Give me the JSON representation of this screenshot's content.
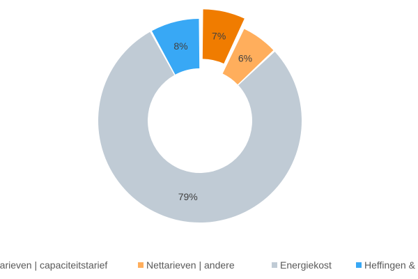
{
  "chart_data": {
    "type": "pie",
    "variant": "donut",
    "series": [
      {
        "name": "Nettarieven | capaciteitstarief",
        "value": 7,
        "label": "7%",
        "color": "#F07C00",
        "exploded": true
      },
      {
        "name": "Nettarieven | andere",
        "value": 6,
        "label": "6%",
        "color": "#FFAE5C",
        "exploded": false
      },
      {
        "name": "Energiekost",
        "value": 79,
        "label": "79%",
        "color": "#C0CBD5",
        "exploded": false
      },
      {
        "name": "Heffingen & taksen",
        "value": 8,
        "label": "8%",
        "color": "#38A8F5",
        "exploded": false
      }
    ],
    "legend": {
      "position": "bottom",
      "items": [
        {
          "text": "Nettarieven | capaciteitstarief",
          "color": "#F07C00"
        },
        {
          "text": "Nettarieven | andere",
          "color": "#FFAE5C"
        },
        {
          "text": "Energiekost",
          "color": "#C0CBD5"
        },
        {
          "text": "Heffingen &",
          "color": "#38A8F5"
        }
      ]
    }
  }
}
